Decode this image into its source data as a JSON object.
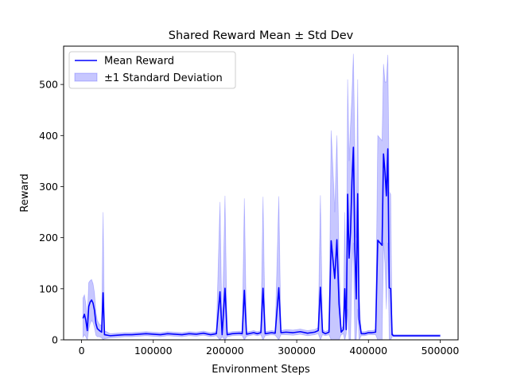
{
  "chart_data": {
    "type": "line",
    "title": "Shared Reward Mean ± Std Dev",
    "xlabel": "Environment Steps",
    "ylabel": "Reward",
    "xlim": [
      -25000,
      525000
    ],
    "ylim": [
      0,
      575
    ],
    "xticks": [
      0,
      100000,
      200000,
      300000,
      400000,
      500000
    ],
    "xtick_labels": [
      "0",
      "100000",
      "200000",
      "300000",
      "400000",
      "500000"
    ],
    "yticks": [
      0,
      100,
      200,
      300,
      400,
      500
    ],
    "ytick_labels": [
      "0",
      "100",
      "200",
      "300",
      "400",
      "500"
    ],
    "legend_position": "top-left",
    "grid": false,
    "series": [
      {
        "name": "Mean Reward",
        "color": "#0000ff",
        "points": [
          [
            2000,
            42
          ],
          [
            4000,
            50
          ],
          [
            6000,
            38
          ],
          [
            8000,
            18
          ],
          [
            10000,
            65
          ],
          [
            12000,
            74
          ],
          [
            14000,
            78
          ],
          [
            16000,
            72
          ],
          [
            18000,
            58
          ],
          [
            20000,
            32
          ],
          [
            22000,
            22
          ],
          [
            25000,
            18
          ],
          [
            28000,
            15
          ],
          [
            30000,
            92
          ],
          [
            32000,
            10
          ],
          [
            40000,
            8
          ],
          [
            50000,
            9
          ],
          [
            60000,
            10
          ],
          [
            70000,
            10
          ],
          [
            80000,
            11
          ],
          [
            90000,
            12
          ],
          [
            100000,
            11
          ],
          [
            110000,
            10
          ],
          [
            120000,
            12
          ],
          [
            130000,
            11
          ],
          [
            140000,
            10
          ],
          [
            150000,
            12
          ],
          [
            160000,
            11
          ],
          [
            170000,
            13
          ],
          [
            180000,
            10
          ],
          [
            188000,
            12
          ],
          [
            193000,
            94
          ],
          [
            196000,
            10
          ],
          [
            200000,
            101
          ],
          [
            203000,
            10
          ],
          [
            210000,
            12
          ],
          [
            220000,
            13
          ],
          [
            224000,
            12
          ],
          [
            227000,
            97
          ],
          [
            230000,
            11
          ],
          [
            240000,
            14
          ],
          [
            245000,
            12
          ],
          [
            250000,
            14
          ],
          [
            253000,
            101
          ],
          [
            256000,
            12
          ],
          [
            265000,
            14
          ],
          [
            270000,
            13
          ],
          [
            275000,
            102
          ],
          [
            278000,
            14
          ],
          [
            285000,
            15
          ],
          [
            295000,
            14
          ],
          [
            305000,
            16
          ],
          [
            315000,
            13
          ],
          [
            325000,
            15
          ],
          [
            330000,
            18
          ],
          [
            333000,
            103
          ],
          [
            336000,
            15
          ],
          [
            340000,
            12
          ],
          [
            345000,
            15
          ],
          [
            348000,
            194
          ],
          [
            351000,
            150
          ],
          [
            353000,
            120
          ],
          [
            356000,
            196
          ],
          [
            359000,
            70
          ],
          [
            362000,
            15
          ],
          [
            365000,
            20
          ],
          [
            367000,
            100
          ],
          [
            369000,
            20
          ],
          [
            371000,
            285
          ],
          [
            373000,
            160
          ],
          [
            375000,
            210
          ],
          [
            377000,
            310
          ],
          [
            379000,
            377
          ],
          [
            381000,
            180
          ],
          [
            383000,
            80
          ],
          [
            385000,
            286
          ],
          [
            387000,
            40
          ],
          [
            390000,
            12
          ],
          [
            395000,
            12
          ],
          [
            400000,
            14
          ],
          [
            405000,
            14
          ],
          [
            410000,
            15
          ],
          [
            413000,
            195
          ],
          [
            416000,
            190
          ],
          [
            419000,
            185
          ],
          [
            421000,
            364
          ],
          [
            423000,
            330
          ],
          [
            425000,
            282
          ],
          [
            427000,
            374
          ],
          [
            429000,
            102
          ],
          [
            431000,
            100
          ],
          [
            433000,
            10
          ],
          [
            435000,
            8
          ],
          [
            450000,
            8
          ],
          [
            475000,
            8
          ],
          [
            500000,
            8
          ]
        ]
      },
      {
        "name": "±1 Standard Deviation",
        "color": "#0000ff",
        "fill_opacity": 0.22,
        "points_upper": [
          [
            2000,
            82
          ],
          [
            4000,
            88
          ],
          [
            6000,
            70
          ],
          [
            8000,
            40
          ],
          [
            10000,
            112
          ],
          [
            12000,
            116
          ],
          [
            14000,
            118
          ],
          [
            16000,
            110
          ],
          [
            18000,
            92
          ],
          [
            20000,
            55
          ],
          [
            22000,
            38
          ],
          [
            25000,
            30
          ],
          [
            28000,
            28
          ],
          [
            30000,
            250
          ],
          [
            32000,
            18
          ],
          [
            40000,
            12
          ],
          [
            50000,
            13
          ],
          [
            60000,
            14
          ],
          [
            70000,
            14
          ],
          [
            80000,
            15
          ],
          [
            90000,
            16
          ],
          [
            100000,
            15
          ],
          [
            110000,
            14
          ],
          [
            120000,
            16
          ],
          [
            130000,
            15
          ],
          [
            140000,
            14
          ],
          [
            150000,
            16
          ],
          [
            160000,
            15
          ],
          [
            170000,
            17
          ],
          [
            180000,
            14
          ],
          [
            188000,
            16
          ],
          [
            193000,
            270
          ],
          [
            196000,
            14
          ],
          [
            200000,
            282
          ],
          [
            203000,
            14
          ],
          [
            210000,
            16
          ],
          [
            220000,
            17
          ],
          [
            224000,
            16
          ],
          [
            227000,
            277
          ],
          [
            230000,
            15
          ],
          [
            240000,
            18
          ],
          [
            245000,
            16
          ],
          [
            250000,
            18
          ],
          [
            253000,
            280
          ],
          [
            256000,
            16
          ],
          [
            265000,
            18
          ],
          [
            270000,
            17
          ],
          [
            275000,
            281
          ],
          [
            278000,
            18
          ],
          [
            285000,
            20
          ],
          [
            295000,
            19
          ],
          [
            305000,
            21
          ],
          [
            315000,
            18
          ],
          [
            325000,
            20
          ],
          [
            330000,
            24
          ],
          [
            333000,
            283
          ],
          [
            336000,
            20
          ],
          [
            340000,
            16
          ],
          [
            345000,
            20
          ],
          [
            348000,
            410
          ],
          [
            351000,
            320
          ],
          [
            353000,
            250
          ],
          [
            356000,
            400
          ],
          [
            359000,
            160
          ],
          [
            362000,
            20
          ],
          [
            365000,
            28
          ],
          [
            367000,
            250
          ],
          [
            369000,
            28
          ],
          [
            371000,
            510
          ],
          [
            373000,
            350
          ],
          [
            375000,
            420
          ],
          [
            377000,
            480
          ],
          [
            379000,
            560
          ],
          [
            381000,
            380
          ],
          [
            383000,
            200
          ],
          [
            385000,
            510
          ],
          [
            387000,
            90
          ],
          [
            390000,
            16
          ],
          [
            395000,
            16
          ],
          [
            400000,
            18
          ],
          [
            405000,
            18
          ],
          [
            410000,
            20
          ],
          [
            413000,
            400
          ],
          [
            416000,
            395
          ],
          [
            419000,
            390
          ],
          [
            421000,
            540
          ],
          [
            423000,
            505
          ],
          [
            425000,
            505
          ],
          [
            427000,
            558
          ],
          [
            429000,
            290
          ],
          [
            431000,
            285
          ],
          [
            433000,
            14
          ],
          [
            435000,
            10
          ],
          [
            450000,
            10
          ],
          [
            475000,
            10
          ],
          [
            500000,
            10
          ]
        ],
        "points_lower": [
          [
            2000,
            5
          ],
          [
            4000,
            10
          ],
          [
            6000,
            6
          ],
          [
            8000,
            0
          ],
          [
            10000,
            20
          ],
          [
            12000,
            32
          ],
          [
            14000,
            38
          ],
          [
            16000,
            34
          ],
          [
            18000,
            24
          ],
          [
            20000,
            9
          ],
          [
            22000,
            6
          ],
          [
            25000,
            6
          ],
          [
            28000,
            4
          ],
          [
            30000,
            0
          ],
          [
            32000,
            2
          ],
          [
            40000,
            4
          ],
          [
            50000,
            5
          ],
          [
            60000,
            6
          ],
          [
            70000,
            6
          ],
          [
            80000,
            7
          ],
          [
            90000,
            8
          ],
          [
            100000,
            7
          ],
          [
            110000,
            6
          ],
          [
            120000,
            8
          ],
          [
            130000,
            7
          ],
          [
            140000,
            6
          ],
          [
            150000,
            8
          ],
          [
            160000,
            7
          ],
          [
            170000,
            9
          ],
          [
            180000,
            6
          ],
          [
            188000,
            8
          ],
          [
            193000,
            0
          ],
          [
            196000,
            6
          ],
          [
            200000,
            0
          ],
          [
            203000,
            6
          ],
          [
            210000,
            8
          ],
          [
            220000,
            9
          ],
          [
            224000,
            8
          ],
          [
            227000,
            0
          ],
          [
            230000,
            7
          ],
          [
            240000,
            10
          ],
          [
            245000,
            8
          ],
          [
            250000,
            10
          ],
          [
            253000,
            0
          ],
          [
            256000,
            8
          ],
          [
            265000,
            10
          ],
          [
            270000,
            9
          ],
          [
            275000,
            0
          ],
          [
            278000,
            10
          ],
          [
            285000,
            10
          ],
          [
            295000,
            9
          ],
          [
            305000,
            11
          ],
          [
            315000,
            8
          ],
          [
            325000,
            10
          ],
          [
            330000,
            12
          ],
          [
            333000,
            0
          ],
          [
            336000,
            10
          ],
          [
            340000,
            8
          ],
          [
            345000,
            10
          ],
          [
            348000,
            0
          ],
          [
            351000,
            0
          ],
          [
            353000,
            0
          ],
          [
            356000,
            0
          ],
          [
            359000,
            0
          ],
          [
            362000,
            10
          ],
          [
            365000,
            12
          ],
          [
            367000,
            0
          ],
          [
            369000,
            12
          ],
          [
            371000,
            60
          ],
          [
            373000,
            0
          ],
          [
            375000,
            0
          ],
          [
            377000,
            140
          ],
          [
            379000,
            190
          ],
          [
            381000,
            0
          ],
          [
            383000,
            0
          ],
          [
            385000,
            60
          ],
          [
            387000,
            0
          ],
          [
            390000,
            8
          ],
          [
            395000,
            8
          ],
          [
            400000,
            10
          ],
          [
            405000,
            10
          ],
          [
            410000,
            10
          ],
          [
            413000,
            0
          ],
          [
            416000,
            0
          ],
          [
            419000,
            0
          ],
          [
            421000,
            190
          ],
          [
            423000,
            150
          ],
          [
            425000,
            60
          ],
          [
            427000,
            190
          ],
          [
            429000,
            0
          ],
          [
            431000,
            0
          ],
          [
            433000,
            6
          ],
          [
            435000,
            6
          ],
          [
            450000,
            6
          ],
          [
            475000,
            6
          ],
          [
            500000,
            6
          ]
        ]
      }
    ]
  }
}
